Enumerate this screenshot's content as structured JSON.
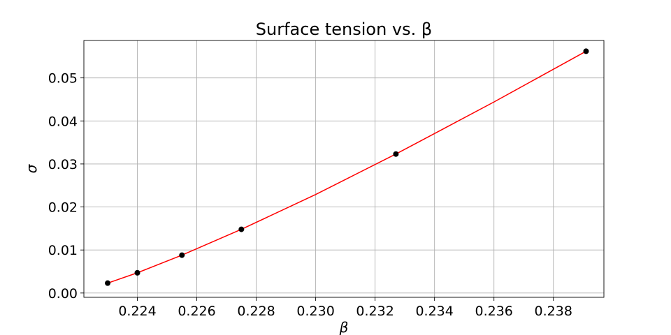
{
  "chart_data": {
    "type": "scatter",
    "title": "Surface tension vs. β",
    "xlabel": "β",
    "ylabel": "σ",
    "xlim": [
      0.2222,
      0.2397
    ],
    "ylim": [
      -0.001,
      0.0587
    ],
    "xticks": [
      0.224,
      0.226,
      0.228,
      0.23,
      0.232,
      0.234,
      0.236,
      0.238
    ],
    "xtick_labels": [
      "0.224",
      "0.226",
      "0.228",
      "0.230",
      "0.232",
      "0.234",
      "0.236",
      "0.238"
    ],
    "yticks": [
      0.0,
      0.01,
      0.02,
      0.03,
      0.04,
      0.05
    ],
    "ytick_labels": [
      "0.00",
      "0.01",
      "0.02",
      "0.03",
      "0.04",
      "0.05"
    ],
    "grid": true,
    "series": [
      {
        "kind": "points",
        "color": "#000000",
        "x": [
          0.223,
          0.224,
          0.2255,
          0.2275,
          0.2327,
          0.2391
        ],
        "y": [
          0.0023,
          0.0047,
          0.0088,
          0.0148,
          0.0323,
          0.0562
        ]
      },
      {
        "kind": "fit-line",
        "color": "#ff0000",
        "x": [
          0.223,
          0.224,
          0.2255,
          0.2275,
          0.23,
          0.2327,
          0.236,
          0.2391
        ],
        "y": [
          0.0023,
          0.0047,
          0.0088,
          0.0148,
          0.0229,
          0.0323,
          0.0444,
          0.0562
        ]
      }
    ]
  }
}
